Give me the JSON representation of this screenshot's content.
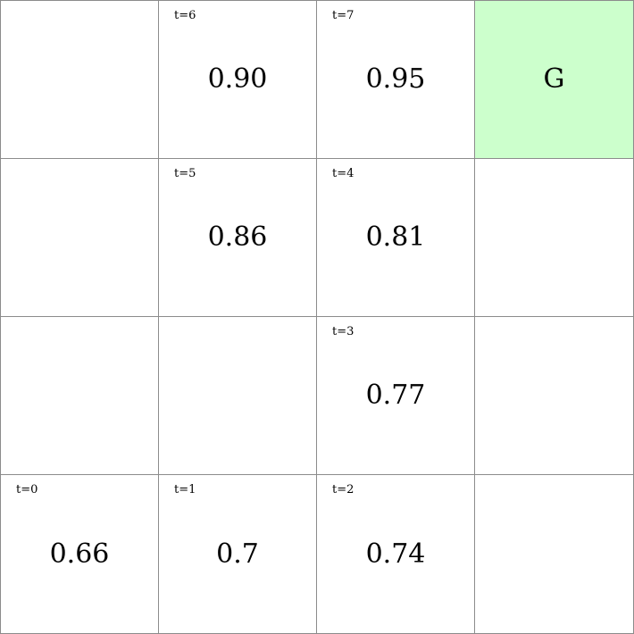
{
  "grid": {
    "rows": 4,
    "cols": 4,
    "goal_color": "#ccffcc",
    "cells": [
      {
        "row": 0,
        "col": 0,
        "step": "",
        "value": "",
        "goal": false
      },
      {
        "row": 0,
        "col": 1,
        "step": "t=6",
        "value": "0.90",
        "goal": false
      },
      {
        "row": 0,
        "col": 2,
        "step": "t=7",
        "value": "0.95",
        "goal": false
      },
      {
        "row": 0,
        "col": 3,
        "step": "",
        "value": "G",
        "goal": true
      },
      {
        "row": 1,
        "col": 0,
        "step": "",
        "value": "",
        "goal": false
      },
      {
        "row": 1,
        "col": 1,
        "step": "t=5",
        "value": "0.86",
        "goal": false
      },
      {
        "row": 1,
        "col": 2,
        "step": "t=4",
        "value": "0.81",
        "goal": false
      },
      {
        "row": 1,
        "col": 3,
        "step": "",
        "value": "",
        "goal": false
      },
      {
        "row": 2,
        "col": 0,
        "step": "",
        "value": "",
        "goal": false
      },
      {
        "row": 2,
        "col": 1,
        "step": "",
        "value": "",
        "goal": false
      },
      {
        "row": 2,
        "col": 2,
        "step": "t=3",
        "value": "0.77",
        "goal": false
      },
      {
        "row": 2,
        "col": 3,
        "step": "",
        "value": "",
        "goal": false
      },
      {
        "row": 3,
        "col": 0,
        "step": "t=0",
        "value": "0.66",
        "goal": false
      },
      {
        "row": 3,
        "col": 1,
        "step": "t=1",
        "value": "0.7",
        "goal": false
      },
      {
        "row": 3,
        "col": 2,
        "step": "t=2",
        "value": "0.74",
        "goal": false
      },
      {
        "row": 3,
        "col": 3,
        "step": "",
        "value": "",
        "goal": false
      }
    ]
  }
}
